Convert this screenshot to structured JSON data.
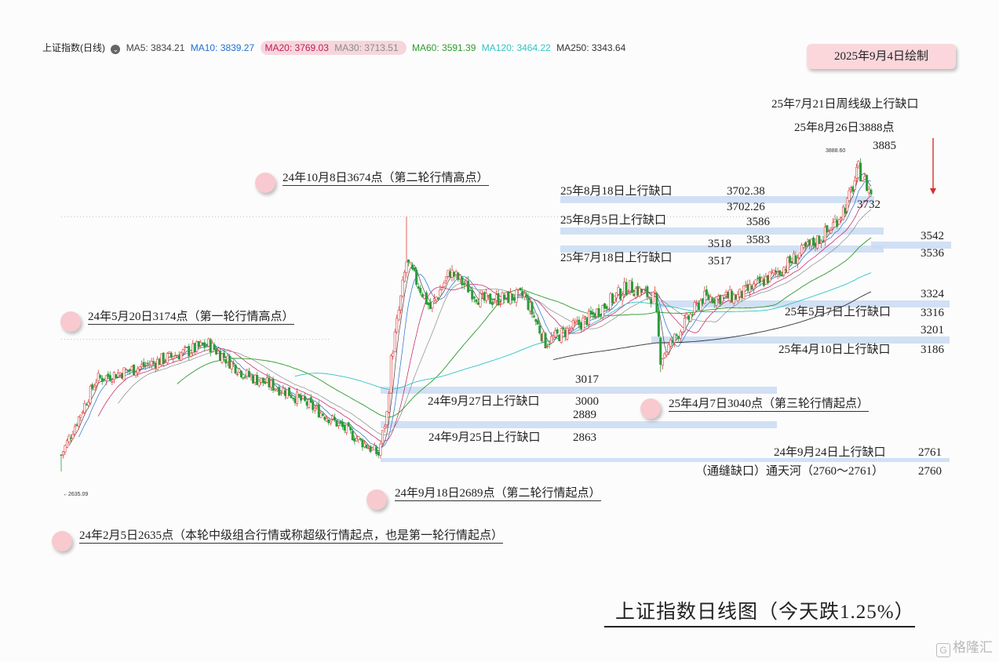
{
  "header": {
    "index_name": "上证指数(日线)",
    "ma": [
      {
        "label": "MA5: 3834.21",
        "color": "#444444"
      },
      {
        "label": "MA10: 3839.27",
        "color": "#1f6fd0"
      },
      {
        "label": "MA20: 3769.03",
        "color": "#c2185b"
      },
      {
        "label": "MA30: 3713.51",
        "color": "#8a8a8a"
      },
      {
        "label": "MA60: 3591.39",
        "color": "#2e9a2e"
      },
      {
        "label": "MA120: 3464.22",
        "color": "#33c3c3"
      },
      {
        "label": "MA250: 3343.64",
        "color": "#333333"
      }
    ],
    "date_badge": "2025年9月4日绘制"
  },
  "annotations": {
    "low_2024_02": "24年2月5日2635点（本轮中级组合行情或称超级行情起点，也是第一轮行情起点）",
    "high_2024_05": "24年5月20日3174点（第一轮行情高点）",
    "low_2024_09": "24年9月18日2689点（第二轮行情起点）",
    "high_2024_10": "24年10月8日3674点（第二轮行情高点）",
    "low_2025_04": "25年4月7日3040点（第三轮行情起点）",
    "gap_0721": "25年7月21日周线级上行缺口",
    "high_0826": "25年8月26日3888点",
    "gap_0818": "25年8月18日上行缺口",
    "gap_0805": "25年8月5日上行缺口",
    "gap_0718": "25年7月18日上行缺口",
    "gap_0507": "25年5月7日上行缺口",
    "gap_0410": "25年4月10日上行缺口",
    "gap_0927": "24年9月27日上行缺口",
    "gap_0925": "24年9月25日上行缺口",
    "gap_0924": "24年9月24日上行缺口",
    "gap_tong": "（通缝缺口）通天河（2760～2761）"
  },
  "levels": {
    "l3885": "3885",
    "l3702_38": "3702.38",
    "l3702_26": "3702.26",
    "l3732": "3732",
    "l3586": "3586",
    "l3583": "3583",
    "l3518": "3518",
    "l3517": "3517",
    "l3542": "3542",
    "l3536": "3536",
    "l3324": "3324",
    "l3316": "3316",
    "l3201": "3201",
    "l3186": "3186",
    "l3017": "3017",
    "l3000": "3000",
    "l2889": "2889",
    "l2863": "2863",
    "l2761": "2761",
    "l2760": "2760"
  },
  "small_labels": {
    "low_mark": "←2635.09",
    "high_mark": "3888.60"
  },
  "title": "上证指数日线图（今天跌1.25%）",
  "watermark": "格隆汇",
  "chart_data": {
    "type": "candlestick",
    "title": "上证指数日线图（今天跌1.25%）",
    "ylim": [
      2600,
      3950
    ],
    "grid": false,
    "dates": [
      "2024-02-05",
      "2024-03-01",
      "2024-04-01",
      "2024-05-20",
      "2024-06-15",
      "2024-07-15",
      "2024-08-15",
      "2024-09-18",
      "2024-09-24",
      "2024-09-27",
      "2024-10-08",
      "2024-10-25",
      "2024-11-08",
      "2024-12-01",
      "2024-12-31",
      "2025-01-15",
      "2025-02-15",
      "2025-03-15",
      "2025-04-03",
      "2025-04-07",
      "2025-05-07",
      "2025-06-01",
      "2025-07-01",
      "2025-07-18",
      "2025-08-05",
      "2025-08-18",
      "2025-08-26",
      "2025-09-04"
    ],
    "close": [
      2702,
      3010,
      3060,
      3154,
      3030,
      2960,
      2850,
      2705,
      2870,
      3088,
      3490,
      3300,
      3450,
      3330,
      3352,
      3160,
      3260,
      3390,
      3342,
      3096,
      3342,
      3348,
      3454,
      3534,
      3617,
      3728,
      3868,
      3766
    ],
    "gaps": [
      {
        "date": "2024-09-24",
        "low": 2760,
        "high": 2761
      },
      {
        "date": "2024-09-25",
        "low": 2863,
        "high": 2889
      },
      {
        "date": "2024-09-27",
        "low": 3000,
        "high": 3017
      },
      {
        "date": "2025-04-10",
        "low": 3186,
        "high": 3201
      },
      {
        "date": "2025-05-07",
        "low": 3316,
        "high": 3324
      },
      {
        "date": "2025-07-18",
        "low": 3517,
        "high": 3518
      },
      {
        "date": "2025-08-05",
        "low": 3583,
        "high": 3586
      },
      {
        "date": "2025-08-18",
        "low": 3702.26,
        "high": 3702.38
      },
      {
        "date": "2025-07-21",
        "low": 3536,
        "high": 3542
      }
    ],
    "key_points": [
      {
        "date": "2024-02-05",
        "value": 2635.09
      },
      {
        "date": "2024-05-20",
        "value": 3174
      },
      {
        "date": "2024-09-18",
        "value": 2689
      },
      {
        "date": "2024-10-08",
        "value": 3674
      },
      {
        "date": "2025-04-07",
        "value": 3040
      },
      {
        "date": "2025-08-26",
        "value": 3888.6
      }
    ]
  }
}
